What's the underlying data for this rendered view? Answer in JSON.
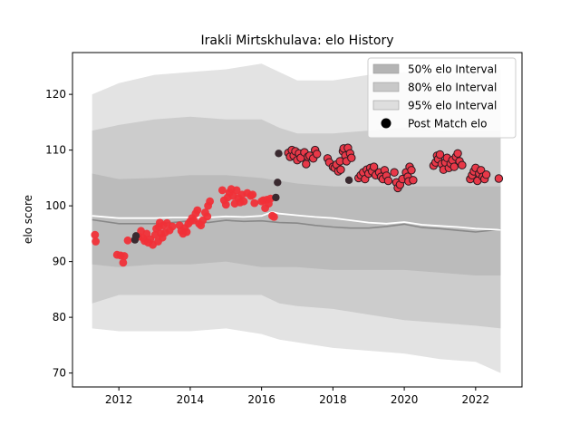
{
  "chart_data": {
    "type": "scatter",
    "title": "Irakli Mirtskhulava: elo History",
    "xlabel": "",
    "ylabel": "elo score",
    "xlim": [
      2010.7,
      2023.3
    ],
    "ylim": [
      67.5,
      127.5
    ],
    "xticks": [
      2012,
      2014,
      2016,
      2018,
      2020,
      2022
    ],
    "yticks": [
      70,
      80,
      90,
      100,
      110,
      120
    ],
    "colors": {
      "band95": "#e3e3e3",
      "band80": "#cccccc",
      "band50": "#bbbbbb",
      "median_line": "#888888",
      "mean_line": "#ffffff",
      "point_early": "#f03038",
      "point_late": "#e83848",
      "point_dark": "#3a2a30"
    },
    "legend": {
      "placement": "top-right",
      "entries": [
        {
          "label": "50% elo Interval",
          "swatch": "#b4b4b4",
          "kind": "patch"
        },
        {
          "label": "80% elo Interval",
          "swatch": "#c8c8c8",
          "kind": "patch"
        },
        {
          "label": "95% elo Interval",
          "swatch": "#dedede",
          "kind": "patch"
        },
        {
          "label": "Post Match elo",
          "swatch": "#000000",
          "kind": "marker"
        }
      ]
    },
    "band_x": [
      2011.25,
      2012.0,
      2013.0,
      2014.0,
      2015.0,
      2016.0,
      2016.5,
      2017.0,
      2018.0,
      2019.0,
      2020.0,
      2021.0,
      2022.0,
      2022.7
    ],
    "band95_upper": [
      120.0,
      122.0,
      123.5,
      124.0,
      124.5,
      125.5,
      124.0,
      122.5,
      122.5,
      123.5,
      124.0,
      123.5,
      124.0,
      124.5
    ],
    "band95_lower": [
      78.0,
      77.5,
      77.5,
      77.5,
      78.0,
      77.0,
      76.0,
      75.5,
      74.5,
      74.0,
      73.5,
      72.5,
      72.0,
      70.0
    ],
    "band80_upper": [
      113.5,
      114.5,
      115.5,
      116.0,
      115.5,
      115.5,
      114.0,
      113.0,
      113.0,
      113.5,
      114.0,
      113.5,
      113.5,
      113.5
    ],
    "band80_lower": [
      82.5,
      84.0,
      84.0,
      84.0,
      84.0,
      84.0,
      82.5,
      82.0,
      81.5,
      80.5,
      79.5,
      79.0,
      78.5,
      78.0
    ],
    "band50_upper": [
      105.8,
      104.8,
      105.0,
      105.5,
      105.5,
      105.0,
      104.5,
      104.0,
      103.5,
      103.5,
      103.5,
      103.5,
      103.5,
      103.5
    ],
    "band50_lower": [
      89.5,
      89.0,
      89.5,
      89.5,
      90.0,
      89.0,
      89.0,
      89.0,
      88.5,
      88.5,
      88.5,
      88.0,
      87.5,
      87.5
    ],
    "median_line": {
      "x": [
        2011.25,
        2012.0,
        2013.0,
        2013.5,
        2014.0,
        2014.5,
        2015.0,
        2015.5,
        2016.0,
        2016.5,
        2017.0,
        2017.5,
        2018.0,
        2018.5,
        2019.0,
        2019.5,
        2020.0,
        2020.5,
        2021.0,
        2021.5,
        2022.0,
        2022.7
      ],
      "y": [
        97.5,
        96.8,
        96.8,
        97.0,
        97.3,
        97.0,
        97.4,
        97.2,
        97.3,
        97.0,
        96.9,
        96.5,
        96.2,
        96.0,
        96.0,
        96.3,
        96.7,
        96.1,
        95.9,
        95.6,
        95.3,
        95.8
      ]
    },
    "mean_line": {
      "x": [
        2011.25,
        2012.0,
        2013.0,
        2013.5,
        2014.0,
        2014.5,
        2015.0,
        2015.5,
        2016.0,
        2016.3,
        2016.5,
        2017.0,
        2017.5,
        2018.0,
        2018.5,
        2019.0,
        2019.5,
        2020.0,
        2020.5,
        2021.0,
        2021.5,
        2022.0,
        2022.7
      ],
      "y": [
        98.2,
        97.8,
        97.8,
        97.9,
        97.9,
        97.9,
        98.1,
        98.0,
        98.2,
        98.9,
        98.6,
        98.3,
        98.0,
        97.8,
        97.4,
        97.0,
        96.8,
        97.1,
        96.6,
        96.4,
        96.2,
        95.9,
        95.7
      ]
    },
    "points_early": [
      [
        2011.33,
        94.8
      ],
      [
        2011.35,
        93.6
      ],
      [
        2011.95,
        91.2
      ],
      [
        2012.05,
        91.1
      ],
      [
        2012.15,
        91.0
      ],
      [
        2012.12,
        89.8
      ],
      [
        2012.25,
        93.8
      ],
      [
        2012.55,
        94.5
      ],
      [
        2012.62,
        95.5
      ],
      [
        2012.68,
        94.2
      ],
      [
        2012.72,
        93.7
      ],
      [
        2012.78,
        95.0
      ],
      [
        2012.82,
        93.4
      ],
      [
        2012.88,
        94.0
      ],
      [
        2012.95,
        93.0
      ],
      [
        2013.02,
        94.8
      ],
      [
        2013.05,
        95.9
      ],
      [
        2013.1,
        93.6
      ],
      [
        2013.12,
        96.2
      ],
      [
        2013.18,
        95.0
      ],
      [
        2013.22,
        94.3
      ],
      [
        2013.25,
        96.5
      ],
      [
        2013.3,
        95.2
      ],
      [
        2013.35,
        96.9
      ],
      [
        2013.42,
        95.6
      ],
      [
        2013.5,
        96.3
      ],
      [
        2013.15,
        97.0
      ],
      [
        2013.7,
        96.5
      ],
      [
        2013.75,
        95.5
      ],
      [
        2013.8,
        95.0
      ],
      [
        2013.85,
        96.0
      ],
      [
        2013.9,
        95.3
      ],
      [
        2013.95,
        96.8
      ],
      [
        2014.0,
        97.2
      ],
      [
        2014.05,
        97.8
      ],
      [
        2014.1,
        97.4
      ],
      [
        2014.15,
        98.6
      ],
      [
        2014.2,
        99.2
      ],
      [
        2014.25,
        96.8
      ],
      [
        2014.3,
        96.5
      ],
      [
        2014.35,
        97.4
      ],
      [
        2014.42,
        98.8
      ],
      [
        2014.48,
        98.1
      ],
      [
        2014.5,
        100.0
      ],
      [
        2014.55,
        100.8
      ],
      [
        2014.9,
        102.8
      ],
      [
        2014.95,
        101.0
      ],
      [
        2015.0,
        100.2
      ],
      [
        2015.05,
        101.5
      ],
      [
        2015.1,
        102.4
      ],
      [
        2015.15,
        103.0
      ],
      [
        2015.2,
        101.8
      ],
      [
        2015.25,
        100.4
      ],
      [
        2015.3,
        102.8
      ],
      [
        2015.35,
        101.4
      ],
      [
        2015.4,
        100.6
      ],
      [
        2015.45,
        102.0
      ],
      [
        2015.5,
        100.8
      ],
      [
        2015.6,
        102.3
      ],
      [
        2015.7,
        101.8
      ],
      [
        2015.75,
        102.0
      ],
      [
        2015.8,
        100.5
      ],
      [
        2016.0,
        100.8
      ],
      [
        2016.05,
        101.0
      ],
      [
        2016.1,
        99.6
      ],
      [
        2016.15,
        101.1
      ],
      [
        2016.2,
        100.4
      ],
      [
        2016.25,
        101.3
      ],
      [
        2016.3,
        98.2
      ],
      [
        2016.35,
        98.0
      ]
    ],
    "points_dark": [
      [
        2012.45,
        93.9
      ],
      [
        2012.48,
        94.6
      ],
      [
        2016.4,
        101.5
      ],
      [
        2016.45,
        104.2
      ],
      [
        2016.48,
        109.4
      ]
    ],
    "points_late": [
      [
        2016.75,
        109.5
      ],
      [
        2016.8,
        108.8
      ],
      [
        2016.85,
        110.0
      ],
      [
        2016.9,
        109.0
      ],
      [
        2016.95,
        109.8
      ],
      [
        2017.0,
        108.2
      ],
      [
        2017.05,
        109.4
      ],
      [
        2017.1,
        108.6
      ],
      [
        2017.2,
        109.6
      ],
      [
        2017.25,
        107.5
      ],
      [
        2017.3,
        108.8
      ],
      [
        2017.35,
        109.0
      ],
      [
        2017.45,
        108.5
      ],
      [
        2017.5,
        110.0
      ],
      [
        2017.55,
        109.3
      ],
      [
        2017.85,
        108.5
      ],
      [
        2017.9,
        107.8
      ],
      [
        2018.0,
        107.0
      ],
      [
        2018.05,
        106.8
      ],
      [
        2018.1,
        107.4
      ],
      [
        2018.15,
        106.2
      ],
      [
        2018.2,
        108.0
      ],
      [
        2018.22,
        106.5
      ],
      [
        2018.28,
        109.8
      ],
      [
        2018.3,
        110.3
      ],
      [
        2018.35,
        109.0
      ],
      [
        2018.38,
        108.0
      ],
      [
        2018.42,
        110.4
      ],
      [
        2018.48,
        109.4
      ],
      [
        2018.52,
        108.6
      ],
      [
        2018.72,
        105.0
      ],
      [
        2018.78,
        105.5
      ],
      [
        2018.85,
        106.0
      ],
      [
        2018.9,
        104.8
      ],
      [
        2018.95,
        106.5
      ],
      [
        2019.0,
        105.8
      ],
      [
        2019.05,
        106.8
      ],
      [
        2019.1,
        106.2
      ],
      [
        2019.15,
        107.0
      ],
      [
        2019.2,
        105.5
      ],
      [
        2019.3,
        106.0
      ],
      [
        2019.35,
        105.2
      ],
      [
        2019.4,
        104.8
      ],
      [
        2019.45,
        106.4
      ],
      [
        2019.5,
        105.4
      ],
      [
        2019.55,
        104.5
      ],
      [
        2019.72,
        106.0
      ],
      [
        2019.78,
        104.2
      ],
      [
        2019.82,
        103.2
      ],
      [
        2019.88,
        103.8
      ],
      [
        2019.95,
        104.8
      ],
      [
        2020.05,
        106.0
      ],
      [
        2020.1,
        105.2
      ],
      [
        2020.12,
        104.4
      ],
      [
        2020.15,
        107.0
      ],
      [
        2020.2,
        106.4
      ],
      [
        2020.25,
        104.6
      ],
      [
        2020.82,
        107.2
      ],
      [
        2020.88,
        107.8
      ],
      [
        2020.92,
        109.0
      ],
      [
        2020.95,
        108.4
      ],
      [
        2021.0,
        109.2
      ],
      [
        2021.05,
        107.5
      ],
      [
        2021.1,
        106.5
      ],
      [
        2021.15,
        107.8
      ],
      [
        2021.2,
        108.6
      ],
      [
        2021.25,
        106.8
      ],
      [
        2021.3,
        107.6
      ],
      [
        2021.35,
        108.2
      ],
      [
        2021.4,
        107.0
      ],
      [
        2021.45,
        108.8
      ],
      [
        2021.5,
        109.4
      ],
      [
        2021.55,
        108.0
      ],
      [
        2021.62,
        107.3
      ],
      [
        2021.85,
        104.8
      ],
      [
        2021.9,
        105.5
      ],
      [
        2021.95,
        106.2
      ],
      [
        2022.0,
        106.8
      ],
      [
        2022.05,
        104.5
      ],
      [
        2022.1,
        105.8
      ],
      [
        2022.15,
        106.4
      ],
      [
        2022.2,
        105.2
      ],
      [
        2022.25,
        104.8
      ],
      [
        2022.3,
        105.6
      ],
      [
        2022.65,
        104.9
      ]
    ],
    "points_late_dark": [
      [
        2018.45,
        104.6
      ]
    ]
  }
}
